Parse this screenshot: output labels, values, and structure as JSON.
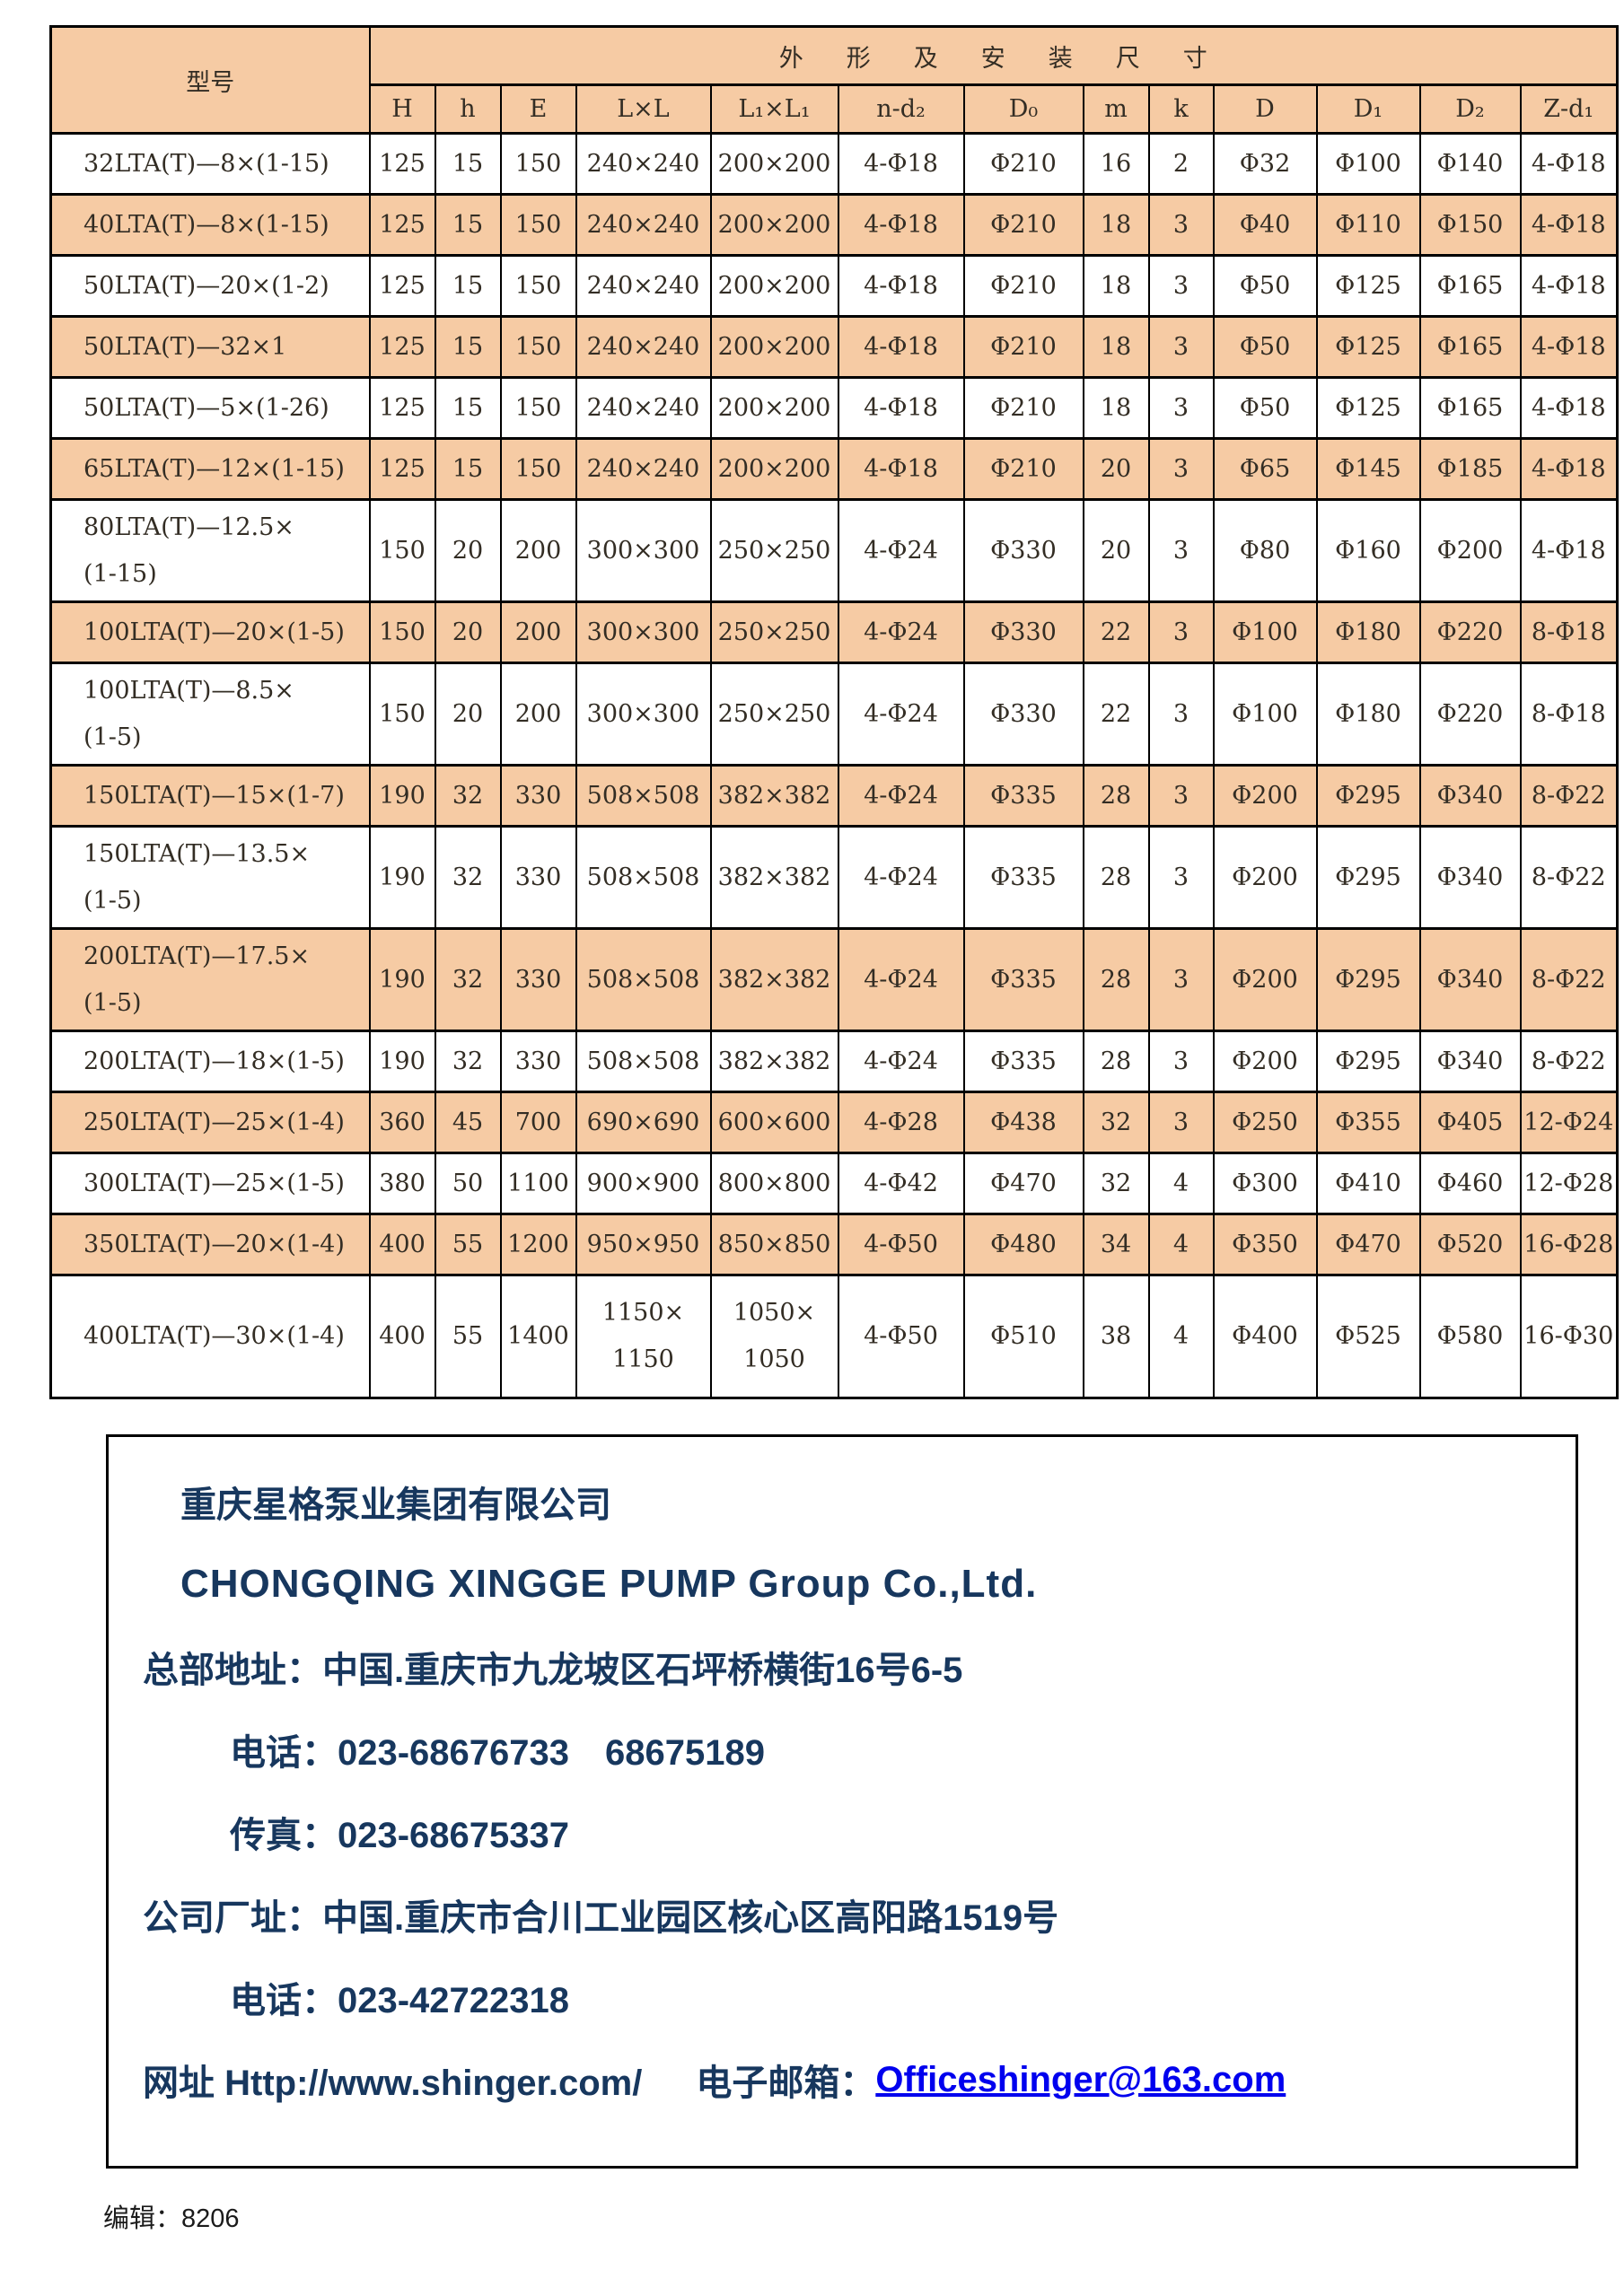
{
  "colors": {
    "stripe_peach": "#F6CBA4",
    "info_navy": "#17375E",
    "email_blue": "#0000EE",
    "border_black": "#000000"
  },
  "table": {
    "model_header": "型号",
    "group_header": "外形及安装尺寸",
    "columns": [
      "H",
      "h",
      "E",
      "L×L",
      "L₁×L₁",
      "n-d₂",
      "D₀",
      "m",
      "k",
      "D",
      "D₁",
      "D₂",
      "Z-d₁"
    ],
    "rows": [
      {
        "model": "32LTA(T)—8×(1-15)",
        "values": [
          "125",
          "15",
          "150",
          "240×240",
          "200×200",
          "4-Φ18",
          "Φ210",
          "16",
          "2",
          "Φ32",
          "Φ100",
          "Φ140",
          "4-Φ18"
        ]
      },
      {
        "model": "40LTA(T)—8×(1-15)",
        "values": [
          "125",
          "15",
          "150",
          "240×240",
          "200×200",
          "4-Φ18",
          "Φ210",
          "18",
          "3",
          "Φ40",
          "Φ110",
          "Φ150",
          "4-Φ18"
        ]
      },
      {
        "model": "50LTA(T)—20×(1-2)",
        "values": [
          "125",
          "15",
          "150",
          "240×240",
          "200×200",
          "4-Φ18",
          "Φ210",
          "18",
          "3",
          "Φ50",
          "Φ125",
          "Φ165",
          "4-Φ18"
        ]
      },
      {
        "model": "50LTA(T)—32×1",
        "values": [
          "125",
          "15",
          "150",
          "240×240",
          "200×200",
          "4-Φ18",
          "Φ210",
          "18",
          "3",
          "Φ50",
          "Φ125",
          "Φ165",
          "4-Φ18"
        ]
      },
      {
        "model": "50LTA(T)—5×(1-26)",
        "values": [
          "125",
          "15",
          "150",
          "240×240",
          "200×200",
          "4-Φ18",
          "Φ210",
          "18",
          "3",
          "Φ50",
          "Φ125",
          "Φ165",
          "4-Φ18"
        ]
      },
      {
        "model": "65LTA(T)—12×(1-15)",
        "values": [
          "125",
          "15",
          "150",
          "240×240",
          "200×200",
          "4-Φ18",
          "Φ210",
          "20",
          "3",
          "Φ65",
          "Φ145",
          "Φ185",
          "4-Φ18"
        ]
      },
      {
        "model": "80LTA(T)—12.5×\n(1-15)",
        "values": [
          "150",
          "20",
          "200",
          "300×300",
          "250×250",
          "4-Φ24",
          "Φ330",
          "20",
          "3",
          "Φ80",
          "Φ160",
          "Φ200",
          "4-Φ18"
        ]
      },
      {
        "model": "100LTA(T)—20×(1-5)",
        "values": [
          "150",
          "20",
          "200",
          "300×300",
          "250×250",
          "4-Φ24",
          "Φ330",
          "22",
          "3",
          "Φ100",
          "Φ180",
          "Φ220",
          "8-Φ18"
        ]
      },
      {
        "model": "100LTA(T)—8.5×\n(1-5)",
        "values": [
          "150",
          "20",
          "200",
          "300×300",
          "250×250",
          "4-Φ24",
          "Φ330",
          "22",
          "3",
          "Φ100",
          "Φ180",
          "Φ220",
          "8-Φ18"
        ]
      },
      {
        "model": "150LTA(T)—15×(1-7)",
        "values": [
          "190",
          "32",
          "330",
          "508×508",
          "382×382",
          "4-Φ24",
          "Φ335",
          "28",
          "3",
          "Φ200",
          "Φ295",
          "Φ340",
          "8-Φ22"
        ]
      },
      {
        "model": "150LTA(T)—13.5×\n(1-5)",
        "values": [
          "190",
          "32",
          "330",
          "508×508",
          "382×382",
          "4-Φ24",
          "Φ335",
          "28",
          "3",
          "Φ200",
          "Φ295",
          "Φ340",
          "8-Φ22"
        ]
      },
      {
        "model": "200LTA(T)—17.5×\n(1-5)",
        "values": [
          "190",
          "32",
          "330",
          "508×508",
          "382×382",
          "4-Φ24",
          "Φ335",
          "28",
          "3",
          "Φ200",
          "Φ295",
          "Φ340",
          "8-Φ22"
        ]
      },
      {
        "model": "200LTA(T)—18×(1-5)",
        "values": [
          "190",
          "32",
          "330",
          "508×508",
          "382×382",
          "4-Φ24",
          "Φ335",
          "28",
          "3",
          "Φ200",
          "Φ295",
          "Φ340",
          "8-Φ22"
        ]
      },
      {
        "model": "250LTA(T)—25×(1-4)",
        "values": [
          "360",
          "45",
          "700",
          "690×690",
          "600×600",
          "4-Φ28",
          "Φ438",
          "32",
          "3",
          "Φ250",
          "Φ355",
          "Φ405",
          "12-Φ24"
        ]
      },
      {
        "model": "300LTA(T)—25×(1-5)",
        "values": [
          "380",
          "50",
          "1100",
          "900×900",
          "800×800",
          "4-Φ42",
          "Φ470",
          "32",
          "4",
          "Φ300",
          "Φ410",
          "Φ460",
          "12-Φ28"
        ]
      },
      {
        "model": "350LTA(T)—20×(1-4)",
        "values": [
          "400",
          "55",
          "1200",
          "950×950",
          "850×850",
          "4-Φ50",
          "Φ480",
          "34",
          "4",
          "Φ350",
          "Φ470",
          "Φ520",
          "16-Φ28"
        ]
      },
      {
        "model": "400LTA(T)—30×(1-4)",
        "values": [
          "400",
          "55",
          "1400",
          "1150×\n1150",
          "1050×\n1050",
          "4-Φ50",
          "Φ510",
          "38",
          "4",
          "Φ400",
          "Φ525",
          "Φ580",
          "16-Φ30"
        ]
      }
    ]
  },
  "info_box": {
    "company_cn": "重庆星格泵业集团有限公司",
    "company_en": "CHONGQING XINGGE PUMP Group Co.,Ltd.",
    "hq_address": "总部地址：中国.重庆市九龙坡区石坪桥横街16号6-5",
    "hq_phone": "电话：023-68676733　68675189",
    "fax": "传真：023-68675337",
    "factory_address": "公司厂址：中国.重庆市合川工业园区核心区高阳路1519号",
    "factory_phone": "电话：023-42722318",
    "website": "网址 Http://www.shinger.com/",
    "email_label": "电子邮箱：",
    "email": "Officeshinger@163.com"
  },
  "page": {
    "edit_note": "编辑：8206"
  }
}
